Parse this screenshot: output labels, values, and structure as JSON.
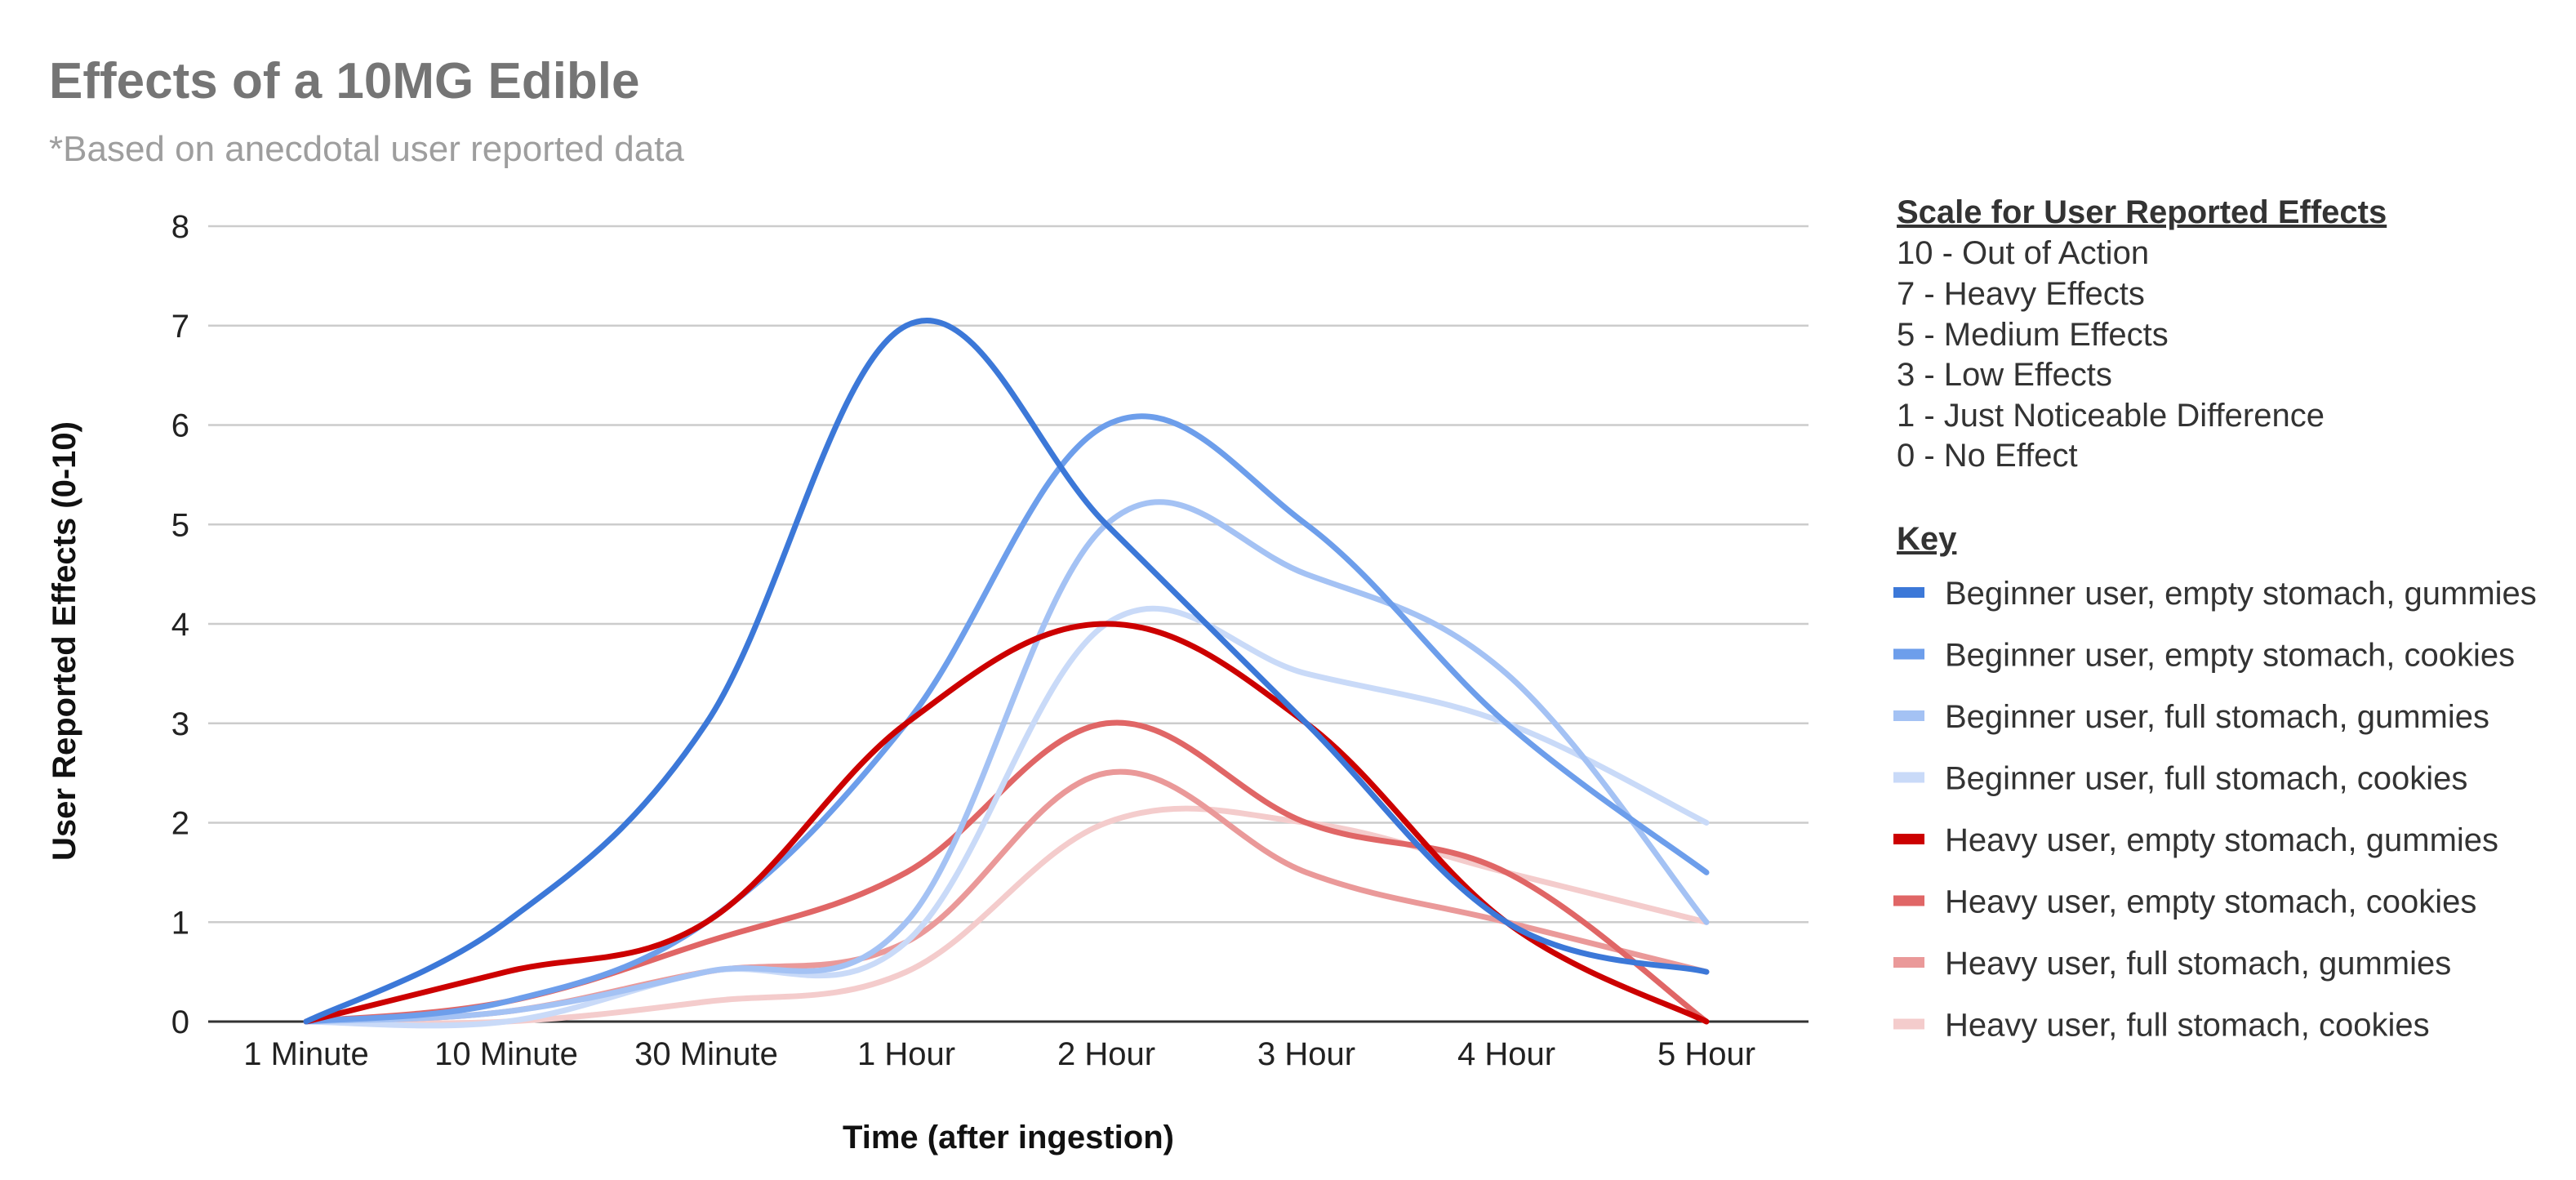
{
  "chart_data": {
    "type": "line",
    "title": "Effects of a 10MG Edible",
    "subtitle": "*Based on anecdotal user reported data",
    "xlabel": "Time (after ingestion)",
    "ylabel": "User Reported Effects (0-10)",
    "ylim": [
      0,
      8
    ],
    "yticks": [
      "0",
      "1",
      "2",
      "3",
      "4",
      "5",
      "6",
      "7",
      "8"
    ],
    "categories": [
      "1 Minute",
      "10 Minute",
      "30 Minute",
      "1 Hour",
      "2 Hour",
      "3 Hour",
      "4 Hour",
      "5 Hour"
    ],
    "grid": true,
    "legend_position": "right",
    "series": [
      {
        "name": "Beginner user, empty stomach, gummies",
        "color": "#3c78d8",
        "values": [
          0,
          1,
          3,
          7,
          5,
          3,
          1,
          0.5
        ]
      },
      {
        "name": "Beginner user, empty stomach, cookies",
        "color": "#6d9eeb",
        "values": [
          0,
          0.2,
          1,
          3,
          6,
          5,
          3,
          1.5
        ]
      },
      {
        "name": "Beginner user, full stomach, gummies",
        "color": "#a4c2f4",
        "values": [
          0,
          0.1,
          0.5,
          1,
          5,
          4.5,
          3.5,
          1
        ]
      },
      {
        "name": "Beginner user, full stomach, cookies",
        "color": "#c9daf8",
        "values": [
          0,
          0,
          0.5,
          0.8,
          4,
          3.5,
          3,
          2
        ]
      },
      {
        "name": "Heavy user, empty stomach, gummies",
        "color": "#cc0000",
        "values": [
          0,
          0.5,
          1,
          3,
          4,
          3,
          1,
          0
        ]
      },
      {
        "name": "Heavy user, empty stomach, cookies",
        "color": "#e06666",
        "values": [
          0,
          0.2,
          0.8,
          1.5,
          3,
          2,
          1.5,
          0
        ]
      },
      {
        "name": "Heavy user, full stomach, gummies",
        "color": "#ea9999",
        "values": [
          0,
          0.1,
          0.5,
          0.8,
          2.5,
          1.5,
          1,
          0.5
        ]
      },
      {
        "name": "Heavy user, full stomach, cookies",
        "color": "#f4cccc",
        "values": [
          0,
          0,
          0.2,
          0.5,
          2,
          2,
          1.5,
          1
        ]
      }
    ]
  },
  "scale_panel": {
    "heading": "Scale for User Reported Effects",
    "items": [
      "10 - Out of Action",
      "7 - Heavy Effects",
      "5 - Medium Effects",
      "3 - Low Effects",
      "1 - Just Noticeable Difference",
      "0 - No Effect"
    ]
  },
  "key_panel": {
    "heading": "Key"
  }
}
